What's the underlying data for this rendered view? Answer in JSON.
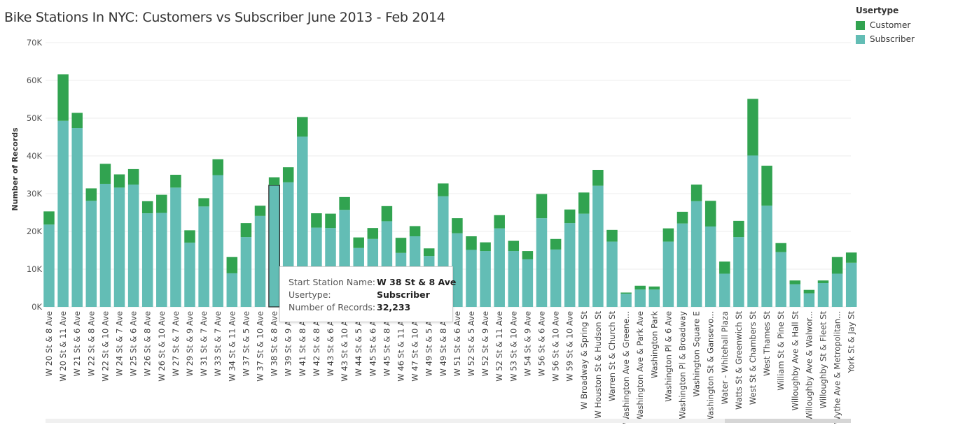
{
  "title": "Bike Stations In NYC: Customers vs Subscriber June 2013 - Feb 2014",
  "legend": {
    "title": "Usertype",
    "items": [
      {
        "label": "Customer",
        "color": "#31a350"
      },
      {
        "label": "Subscriber",
        "color": "#63bdb5"
      }
    ]
  },
  "tooltip": {
    "rows": [
      {
        "label": "Start Station Name:",
        "value": "W 38 St & 8 Ave"
      },
      {
        "label": "Usertype:",
        "value": "Subscriber"
      },
      {
        "label": "Number of Records:",
        "value": "32,233"
      }
    ]
  },
  "chart_data": {
    "type": "bar",
    "stacked": true,
    "title": "Bike Stations In NYC: Customers vs Subscriber June 2013 - Feb 2014",
    "xlabel": "",
    "ylabel": "Number of Records",
    "ylim": [
      0,
      70000
    ],
    "yticks": [
      "0K",
      "10K",
      "20K",
      "30K",
      "40K",
      "50K",
      "60K",
      "70K"
    ],
    "grid": true,
    "legend_position": "top-right",
    "highlighted_category": "W 38 St & 8 Ave",
    "categories": [
      "W 20 St & 8 Ave",
      "W 20 St & 11 Ave",
      "W 21 St & 6 Ave",
      "W 22 St & 8 Ave",
      "W 22 St & 10 Ave",
      "W 24 St & 7 Ave",
      "W 25 St & 6 Ave",
      "W 26 St & 8 Ave",
      "W 26 St & 10 Ave",
      "W 27 St & 7 Ave",
      "W 29 St & 9 Ave",
      "W 31 St & 7 Ave",
      "W 33 St & 7 Ave",
      "W 34 St & 11 Ave",
      "W 37 St & 5 Ave",
      "W 37 St & 10 Ave",
      "W 38 St & 8 Ave",
      "W 39 St & 9 Ave",
      "W 41 St & 8 Ave",
      "W 42 St & 8 Ave",
      "W 43 St & 6 Ave",
      "W 43 St & 10 Ave",
      "W 44 St & 5 Ave",
      "W 45 St & 6 Ave",
      "W 45 St & 8 Ave",
      "W 46 St & 11 Ave",
      "W 47 St & 10 Ave",
      "W 49 St & 5 Ave",
      "W 49 St & 8 Ave",
      "W 51 St & 6 Ave",
      "W 52 St & 5 Ave",
      "W 52 St & 9 Ave",
      "W 52 St & 11 Ave",
      "W 53 St & 10 Ave",
      "W 54 St & 9 Ave",
      "W 56 St & 6 Ave",
      "W 56 St & 10 Ave",
      "W 59 St & 10 Ave",
      "W Broadway & Spring St",
      "W Houston St & Hudson St",
      "Warren St & Church St",
      "Washington Ave & Greene...",
      "Washington Ave & Park Ave",
      "Washington Park",
      "Washington Pl & 6 Ave",
      "Washington Pl & Broadway",
      "Washington Square E",
      "Washington St & Gansevo...",
      "Water - Whitehall Plaza",
      "Watts St & Greenwich St",
      "West St & Chambers St",
      "West Thames St",
      "William St & Pine St",
      "Willoughby Ave & Hall St",
      "Willoughby Ave & Walwor...",
      "Willoughby St & Fleet St",
      "Wythe Ave & Metropolitan...",
      "York St & Jay St"
    ],
    "series": [
      {
        "name": "Subscriber",
        "values": [
          21800,
          49300,
          47400,
          28100,
          32600,
          31600,
          32400,
          24800,
          24900,
          31600,
          17000,
          26600,
          34900,
          8900,
          18500,
          24100,
          32233,
          33000,
          45100,
          21000,
          20900,
          25700,
          15600,
          18000,
          22700,
          14300,
          18700,
          13500,
          29300,
          19500,
          15100,
          14800,
          20800,
          14800,
          12600,
          23500,
          15200,
          22200,
          24700,
          32100,
          17300,
          3500,
          4600,
          4600,
          17300,
          22100,
          28000,
          21300,
          8800,
          18500,
          40100,
          26800,
          14500,
          6000,
          3600,
          6300,
          8800,
          11700
        ]
      },
      {
        "name": "Customer",
        "values": [
          3500,
          12300,
          4000,
          3300,
          5300,
          3500,
          4100,
          3200,
          4800,
          3400,
          3300,
          2200,
          4200,
          4300,
          3700,
          2700,
          2100,
          4000,
          5200,
          3800,
          3800,
          3400,
          2800,
          2900,
          4000,
          4000,
          2700,
          2000,
          3400,
          4000,
          3600,
          2300,
          3500,
          2700,
          2200,
          6400,
          2800,
          3600,
          5600,
          4200,
          3100,
          300,
          1000,
          800,
          3500,
          3100,
          4400,
          6800,
          3200,
          4300,
          15000,
          10600,
          2400,
          1000,
          900,
          700,
          4400,
          2700
        ]
      }
    ]
  }
}
